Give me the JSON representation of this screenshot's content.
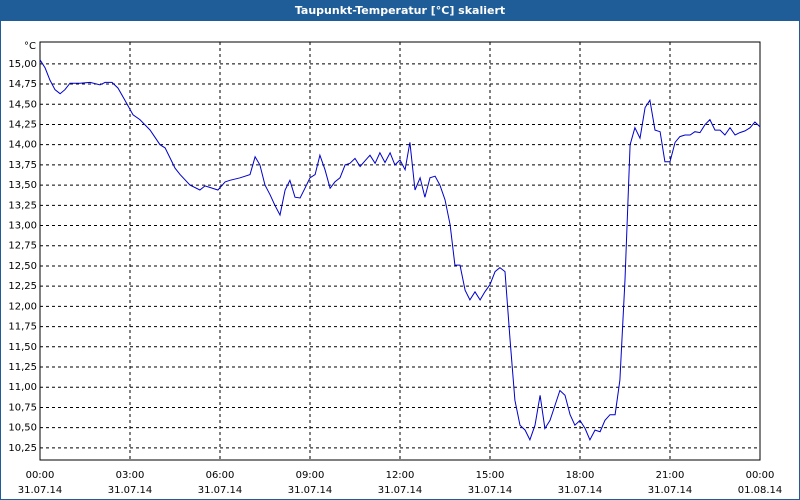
{
  "chart_data": {
    "type": "line",
    "title": "Taupunkt-Temperatur [°C] skaliert",
    "y_unit": "°C",
    "color": "#0000cc",
    "grid": true,
    "xlim": [
      0,
      24
    ],
    "ylim": [
      10.1,
      15.27
    ],
    "xticks": [
      {
        "value": 0,
        "label": "00:00",
        "date": "31.07.14"
      },
      {
        "value": 3,
        "label": "03:00",
        "date": "31.07.14"
      },
      {
        "value": 6,
        "label": "06:00",
        "date": "31.07.14"
      },
      {
        "value": 9,
        "label": "09:00",
        "date": "31.07.14"
      },
      {
        "value": 12,
        "label": "12:00",
        "date": "31.07.14"
      },
      {
        "value": 15,
        "label": "15:00",
        "date": "31.07.14"
      },
      {
        "value": 18,
        "label": "18:00",
        "date": "31.07.14"
      },
      {
        "value": 21,
        "label": "21:00",
        "date": "31.07.14"
      },
      {
        "value": 24,
        "label": "00:00",
        "date": "01.08.14"
      }
    ],
    "yticks": [
      {
        "value": 10.25,
        "label": "10,25"
      },
      {
        "value": 10.5,
        "label": "10,50"
      },
      {
        "value": 10.75,
        "label": "10,75"
      },
      {
        "value": 11,
        "label": "11,00"
      },
      {
        "value": 11.25,
        "label": "11,25"
      },
      {
        "value": 11.5,
        "label": "11,50"
      },
      {
        "value": 11.75,
        "label": "11,75"
      },
      {
        "value": 12,
        "label": "12,00"
      },
      {
        "value": 12.25,
        "label": "12,25"
      },
      {
        "value": 12.5,
        "label": "12,50"
      },
      {
        "value": 12.75,
        "label": "12,75"
      },
      {
        "value": 13,
        "label": "13,00"
      },
      {
        "value": 13.25,
        "label": "13,25"
      },
      {
        "value": 13.5,
        "label": "13,50"
      },
      {
        "value": 13.75,
        "label": "13,75"
      },
      {
        "value": 14,
        "label": "14,00"
      },
      {
        "value": 14.25,
        "label": "14,25"
      },
      {
        "value": 14.5,
        "label": "14,50"
      },
      {
        "value": 14.75,
        "label": "14,75"
      },
      {
        "value": 15,
        "label": "15,00"
      }
    ],
    "x": [
      0,
      0.17,
      0.33,
      0.5,
      0.67,
      0.83,
      1,
      1.33,
      1.67,
      2,
      2.17,
      2.4,
      2.6,
      2.83,
      3.1,
      3.33,
      3.67,
      4,
      4.17,
      4.33,
      4.5,
      4.67,
      5,
      5.33,
      5.5,
      5.67,
      5.93,
      6.17,
      6.33,
      6.67,
      7,
      7.17,
      7.33,
      7.5,
      7.67,
      7.83,
      8,
      8.17,
      8.33,
      8.5,
      8.67,
      8.83,
      9,
      9.17,
      9.33,
      9.5,
      9.67,
      9.83,
      10,
      10.17,
      10.33,
      10.5,
      10.67,
      10.83,
      11,
      11.17,
      11.33,
      11.5,
      11.67,
      11.83,
      12,
      12.17,
      12.33,
      12.5,
      12.67,
      12.83,
      13,
      13.17,
      13.33,
      13.5,
      13.67,
      13.83,
      14,
      14.17,
      14.33,
      14.5,
      14.67,
      14.83,
      15,
      15.17,
      15.33,
      15.5,
      15.67,
      15.83,
      16,
      16.17,
      16.33,
      16.5,
      16.67,
      16.83,
      17,
      17.17,
      17.33,
      17.5,
      17.67,
      17.83,
      18,
      18.17,
      18.33,
      18.5,
      18.67,
      18.83,
      19,
      19.17,
      19.33,
      19.5,
      19.67,
      19.83,
      20,
      20.17,
      20.33,
      20.5,
      20.67,
      20.83,
      21,
      21.17,
      21.33,
      21.5,
      21.67,
      21.83,
      22,
      22.17,
      22.33,
      22.5,
      22.67,
      22.83,
      23,
      23.17,
      23.33,
      23.5,
      23.67,
      23.83,
      24
    ],
    "values": [
      15.05,
      14.95,
      14.8,
      14.68,
      14.63,
      14.68,
      14.76,
      14.76,
      14.77,
      14.74,
      14.77,
      14.77,
      14.7,
      14.55,
      14.37,
      14.31,
      14.18,
      14.0,
      13.96,
      13.84,
      13.71,
      13.63,
      13.5,
      13.44,
      13.49,
      13.47,
      13.44,
      13.54,
      13.56,
      13.59,
      13.63,
      13.85,
      13.75,
      13.5,
      13.38,
      13.25,
      13.13,
      13.44,
      13.56,
      13.35,
      13.34,
      13.46,
      13.59,
      13.63,
      13.87,
      13.69,
      13.46,
      13.54,
      13.59,
      13.75,
      13.77,
      13.83,
      13.73,
      13.8,
      13.87,
      13.77,
      13.9,
      13.78,
      13.9,
      13.75,
      13.81,
      13.69,
      14.03,
      13.44,
      13.59,
      13.35,
      13.59,
      13.61,
      13.5,
      13.32,
      13.01,
      12.51,
      12.51,
      12.2,
      12.08,
      12.18,
      12.08,
      12.18,
      12.27,
      12.43,
      12.48,
      12.43,
      11.58,
      10.84,
      10.53,
      10.47,
      10.35,
      10.53,
      10.9,
      10.49,
      10.59,
      10.78,
      10.96,
      10.9,
      10.66,
      10.53,
      10.59,
      10.49,
      10.35,
      10.47,
      10.45,
      10.59,
      10.66,
      10.66,
      11.09,
      12.33,
      14.0,
      14.21,
      14.08,
      14.46,
      14.55,
      14.18,
      14.16,
      13.79,
      13.79,
      14.03,
      14.1,
      14.12,
      14.12,
      14.16,
      14.15,
      14.25,
      14.31,
      14.18,
      14.18,
      14.12,
      14.21,
      14.12,
      14.15,
      14.17,
      14.21,
      14.28,
      14.22
    ]
  }
}
